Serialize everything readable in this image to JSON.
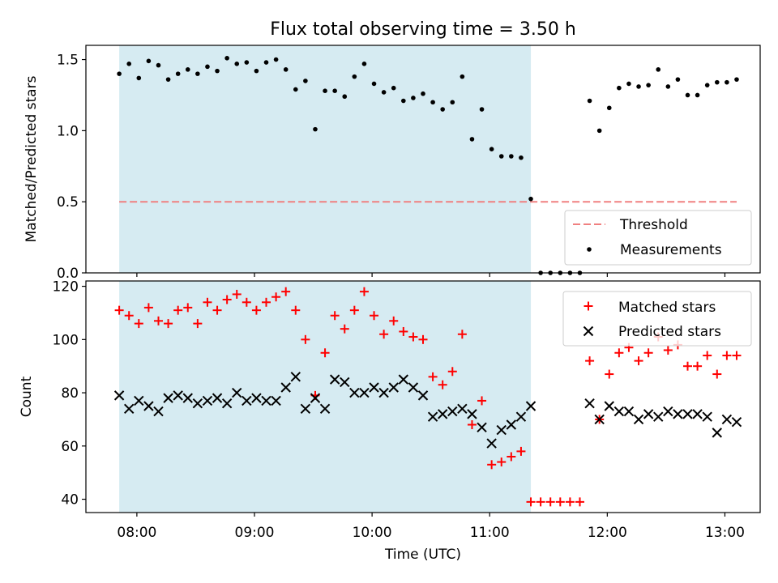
{
  "chart_data": {
    "title": "Flux total observing time = 3.50 h",
    "xlabel": "Time (UTC)",
    "x_ticks": [
      "08:00",
      "09:00",
      "10:00",
      "11:00",
      "12:00",
      "13:00"
    ],
    "x_range": [
      "07:34",
      "13:18"
    ],
    "shaded_span": [
      "07:51",
      "11:21"
    ],
    "shade_color": "#add8e6",
    "panels": [
      {
        "type": "scatter",
        "ylabel": "Matched/Predicted stars",
        "ylim": [
          0,
          1.6
        ],
        "yticks": [
          0.0,
          0.5,
          1.0,
          1.5
        ],
        "legend_position": "lower-right",
        "threshold": {
          "name": "Threshold",
          "value": 0.5,
          "color": "#f08080",
          "style": "dashed",
          "x_start": "07:51",
          "x_end": "13:06"
        },
        "series": [
          {
            "name": "Measurements",
            "color": "#000000",
            "marker": "dot",
            "x": [
              "07:51",
              "07:56",
              "08:01",
              "08:06",
              "08:11",
              "08:16",
              "08:21",
              "08:26",
              "08:31",
              "08:36",
              "08:41",
              "08:46",
              "08:51",
              "08:56",
              "09:01",
              "09:06",
              "09:11",
              "09:16",
              "09:21",
              "09:26",
              "09:31",
              "09:36",
              "09:41",
              "09:46",
              "09:51",
              "09:56",
              "10:01",
              "10:06",
              "10:11",
              "10:16",
              "10:21",
              "10:26",
              "10:31",
              "10:36",
              "10:41",
              "10:46",
              "10:51",
              "10:56",
              "11:01",
              "11:06",
              "11:11",
              "11:16",
              "11:21",
              "11:26",
              "11:31",
              "11:36",
              "11:41",
              "11:46",
              "11:51",
              "11:56",
              "12:01",
              "12:06",
              "12:11",
              "12:16",
              "12:21",
              "12:26",
              "12:31",
              "12:36",
              "12:41",
              "12:46",
              "12:51",
              "12:56",
              "13:01",
              "13:06"
            ],
            "y": [
              1.4,
              1.47,
              1.37,
              1.49,
              1.46,
              1.36,
              1.4,
              1.43,
              1.4,
              1.45,
              1.42,
              1.51,
              1.47,
              1.48,
              1.42,
              1.48,
              1.5,
              1.43,
              1.29,
              1.35,
              1.01,
              1.28,
              1.28,
              1.24,
              1.38,
              1.47,
              1.33,
              1.27,
              1.3,
              1.21,
              1.23,
              1.26,
              1.2,
              1.15,
              1.2,
              1.38,
              0.94,
              1.15,
              0.87,
              0.82,
              0.82,
              0.81,
              0.52,
              0.0,
              0.0,
              0.0,
              0.0,
              0.0,
              1.21,
              1.0,
              1.16,
              1.3,
              1.33,
              1.31,
              1.32,
              1.43,
              1.31,
              1.36,
              1.25,
              1.25,
              1.32,
              1.34,
              1.34,
              1.36
            ]
          }
        ]
      },
      {
        "type": "scatter",
        "ylabel": "Count",
        "ylim": [
          35,
          122
        ],
        "yticks": [
          40,
          60,
          80,
          100,
          120
        ],
        "legend_position": "top-right",
        "series": [
          {
            "name": "Matched stars",
            "color": "#ff0000",
            "marker": "plus",
            "x": [
              "07:51",
              "07:56",
              "08:01",
              "08:06",
              "08:11",
              "08:16",
              "08:21",
              "08:26",
              "08:31",
              "08:36",
              "08:41",
              "08:46",
              "08:51",
              "08:56",
              "09:01",
              "09:06",
              "09:11",
              "09:16",
              "09:21",
              "09:26",
              "09:31",
              "09:36",
              "09:41",
              "09:46",
              "09:51",
              "09:56",
              "10:01",
              "10:06",
              "10:11",
              "10:16",
              "10:21",
              "10:26",
              "10:31",
              "10:36",
              "10:41",
              "10:46",
              "10:51",
              "10:56",
              "11:01",
              "11:06",
              "11:11",
              "11:16",
              "11:21",
              "11:26",
              "11:31",
              "11:36",
              "11:41",
              "11:46",
              "11:51",
              "11:56",
              "12:01",
              "12:06",
              "12:11",
              "12:16",
              "12:21",
              "12:26",
              "12:31",
              "12:36",
              "12:41",
              "12:46",
              "12:51",
              "12:56",
              "13:01",
              "13:06"
            ],
            "y": [
              111,
              109,
              106,
              112,
              107,
              106,
              111,
              112,
              106,
              114,
              111,
              115,
              117,
              114,
              111,
              114,
              116,
              118,
              111,
              100,
              79,
              95,
              109,
              104,
              111,
              118,
              109,
              102,
              107,
              103,
              101,
              100,
              86,
              83,
              88,
              102,
              68,
              77,
              53,
              54,
              56,
              58,
              39,
              39,
              39,
              39,
              39,
              39,
              92,
              70,
              87,
              95,
              97,
              92,
              95,
              101,
              96,
              98,
              90,
              90,
              94,
              87,
              94,
              94
            ]
          },
          {
            "name": "Predicted stars",
            "color": "#000000",
            "marker": "x",
            "x": [
              "07:51",
              "07:56",
              "08:01",
              "08:06",
              "08:11",
              "08:16",
              "08:21",
              "08:26",
              "08:31",
              "08:36",
              "08:41",
              "08:46",
              "08:51",
              "08:56",
              "09:01",
              "09:06",
              "09:11",
              "09:16",
              "09:21",
              "09:26",
              "09:31",
              "09:36",
              "09:41",
              "09:46",
              "09:51",
              "09:56",
              "10:01",
              "10:06",
              "10:11",
              "10:16",
              "10:21",
              "10:26",
              "10:31",
              "10:36",
              "10:41",
              "10:46",
              "10:51",
              "10:56",
              "11:01",
              "11:06",
              "11:11",
              "11:16",
              "11:21",
              "11:51",
              "11:56",
              "12:01",
              "12:06",
              "12:11",
              "12:16",
              "12:21",
              "12:26",
              "12:31",
              "12:36",
              "12:41",
              "12:46",
              "12:51",
              "12:56",
              "13:01",
              "13:06"
            ],
            "y": [
              79,
              74,
              77,
              75,
              73,
              78,
              79,
              78,
              76,
              77,
              78,
              76,
              80,
              77,
              78,
              77,
              77,
              82,
              86,
              74,
              78,
              74,
              85,
              84,
              80,
              80,
              82,
              80,
              82,
              85,
              82,
              79,
              71,
              72,
              73,
              74,
              72,
              67,
              61,
              66,
              68,
              71,
              75,
              76,
              70,
              75,
              73,
              73,
              70,
              72,
              71,
              73,
              72,
              72,
              72,
              71,
              65,
              70,
              69
            ]
          }
        ]
      }
    ]
  }
}
